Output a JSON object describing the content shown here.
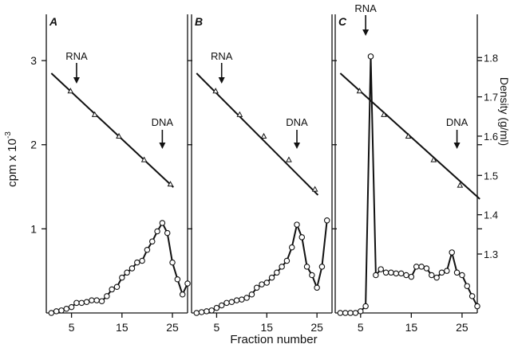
{
  "chart_data": {
    "type": "line",
    "panels": [
      "A",
      "B",
      "C"
    ],
    "ylabel_left": "cpm x 10",
    "ylabel_left_exp": "-3",
    "ylabel_right": "Density (g/ml)",
    "xlabel": "Fraction number",
    "x_ticks": [
      5,
      15,
      25
    ],
    "y_left_ticks": [
      1,
      2,
      3
    ],
    "y_right_ticks": [
      1.3,
      1.4,
      1.5,
      1.6,
      1.7,
      1.8
    ],
    "x_range": [
      0,
      28
    ],
    "y_left_range": [
      0,
      3.55
    ],
    "y_right_range": [
      1.15,
      1.91
    ],
    "marker_labels": {
      "rna": "RNA",
      "dna": "DNA"
    },
    "series": [
      {
        "panel": "A",
        "cpm": {
          "x": [
            1,
            2,
            3,
            4,
            5,
            6,
            7,
            8,
            9,
            10,
            11,
            12,
            13,
            14,
            15,
            16,
            17,
            18,
            19,
            20,
            21,
            22,
            23,
            24,
            25,
            26,
            27,
            28
          ],
          "y": [
            0.0,
            0.02,
            0.03,
            0.05,
            0.07,
            0.12,
            0.12,
            0.13,
            0.15,
            0.15,
            0.14,
            0.2,
            0.28,
            0.31,
            0.42,
            0.48,
            0.53,
            0.6,
            0.62,
            0.75,
            0.85,
            0.97,
            1.07,
            0.95,
            0.6,
            0.4,
            0.22,
            0.35
          ]
        },
        "density": {
          "x": [
            4.8,
            9.6,
            14.4,
            19.4,
            24.6
          ],
          "y": [
            1.715,
            1.655,
            1.6,
            1.54,
            1.478
          ]
        },
        "fit_line": {
          "x": [
            1,
            25.2
          ],
          "y": [
            1.76,
            1.47
          ]
        },
        "markers": {
          "rna_x": 6,
          "dna_x": 23
        }
      },
      {
        "panel": "B",
        "cpm": {
          "x": [
            1,
            2,
            3,
            4,
            5,
            6,
            7,
            8,
            9,
            10,
            11,
            12,
            13,
            14,
            15,
            16,
            17,
            18,
            19,
            20,
            21,
            22,
            23,
            24,
            25,
            26,
            27
          ],
          "y": [
            0.0,
            0.01,
            0.02,
            0.03,
            0.06,
            0.09,
            0.12,
            0.13,
            0.15,
            0.16,
            0.18,
            0.22,
            0.3,
            0.34,
            0.36,
            0.42,
            0.48,
            0.55,
            0.62,
            0.78,
            1.05,
            0.9,
            0.55,
            0.45,
            0.3,
            0.55,
            1.1
          ]
        },
        "density": {
          "x": [
            4.8,
            9.6,
            14.4,
            19.4,
            24.6
          ],
          "y": [
            1.715,
            1.655,
            1.6,
            1.54,
            1.465
          ]
        },
        "fit_line": {
          "x": [
            1,
            25.2
          ],
          "y": [
            1.76,
            1.45
          ]
        },
        "markers": {
          "rna_x": 6,
          "dna_x": 21
        }
      },
      {
        "panel": "C",
        "cpm": {
          "x": [
            1,
            2,
            3,
            4,
            5,
            6,
            7,
            8,
            9,
            10,
            11,
            12,
            13,
            14,
            15,
            16,
            17,
            18,
            19,
            20,
            21,
            22,
            23,
            24,
            25,
            26,
            27,
            28
          ],
          "y": [
            0.0,
            0.0,
            0.0,
            0.0,
            0.02,
            0.08,
            3.05,
            0.45,
            0.52,
            0.48,
            0.48,
            0.47,
            0.47,
            0.45,
            0.43,
            0.55,
            0.55,
            0.53,
            0.45,
            0.42,
            0.48,
            0.5,
            0.72,
            0.48,
            0.45,
            0.32,
            0.2,
            0.08
          ]
        },
        "density": {
          "x": [
            4.8,
            9.6,
            14.4,
            19.4,
            24.6
          ],
          "y": [
            1.715,
            1.655,
            1.6,
            1.54,
            1.475
          ]
        },
        "fit_line": {
          "x": [
            1,
            28.5
          ],
          "y": [
            1.76,
            1.44
          ]
        },
        "markers": {
          "rna_x": 6,
          "dna_x": 24
        }
      }
    ]
  }
}
